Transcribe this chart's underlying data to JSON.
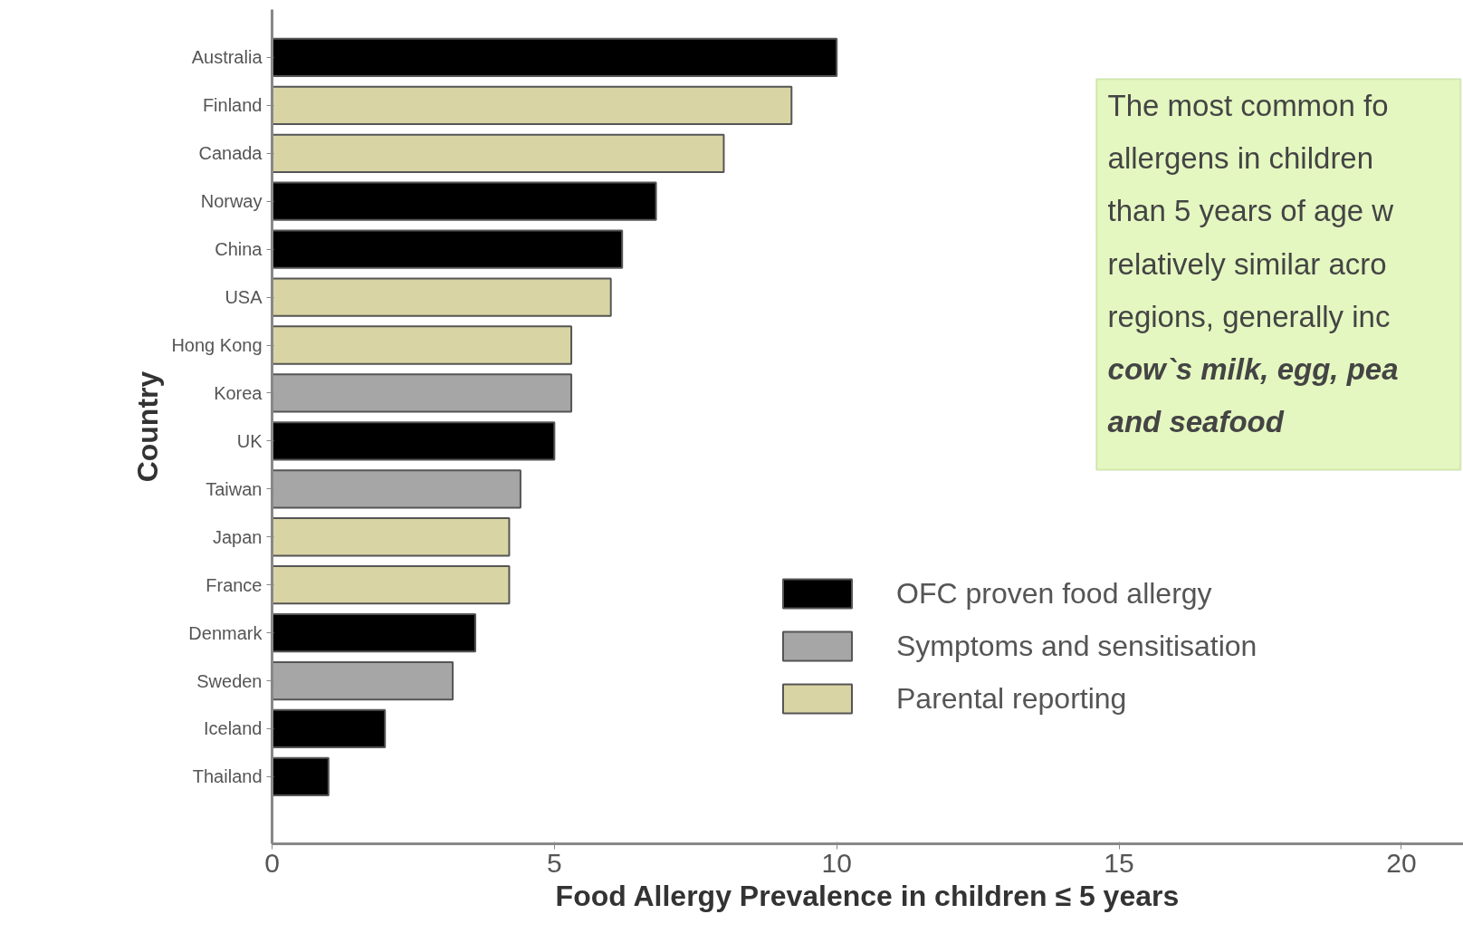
{
  "chart_data": {
    "type": "bar",
    "orientation": "horizontal",
    "categories": [
      "Australia",
      "Finland",
      "Canada",
      "Norway",
      "China",
      "USA",
      "Hong Kong",
      "Korea",
      "UK",
      "Taiwan",
      "Japan",
      "France",
      "Denmark",
      "Sweden",
      "Iceland",
      "Thailand"
    ],
    "series": [
      {
        "name": "OFC proven food allergy",
        "color": "#000000",
        "values": [
          10.0,
          null,
          null,
          6.8,
          6.2,
          null,
          null,
          null,
          5.0,
          null,
          null,
          null,
          3.6,
          null,
          2.0,
          1.0
        ]
      },
      {
        "name": "Symptoms and sensitisation",
        "color": "#a6a6a6",
        "values": [
          null,
          null,
          null,
          null,
          null,
          null,
          null,
          5.3,
          null,
          4.4,
          null,
          null,
          null,
          3.2,
          null,
          null
        ]
      },
      {
        "name": "Parental reporting",
        "color": "#d9d4a4",
        "values": [
          null,
          9.2,
          8.0,
          null,
          null,
          6.0,
          5.3,
          null,
          null,
          null,
          4.2,
          4.2,
          null,
          null,
          null,
          null
        ]
      }
    ],
    "xlim": [
      0,
      21.1
    ],
    "xticks": [
      0,
      5,
      10,
      15,
      20
    ],
    "xlabel": "Food Allergy Prevalence in children ≤ 5 years",
    "ylabel": "Country",
    "legend": "right",
    "grid": false,
    "annotations": [
      "The most common fo\nallergens in children\nthan 5 years of age w\nrelatively similar acro\nregions, generally inc",
      "cow`s milk, egg, pea\nand seafood"
    ]
  }
}
